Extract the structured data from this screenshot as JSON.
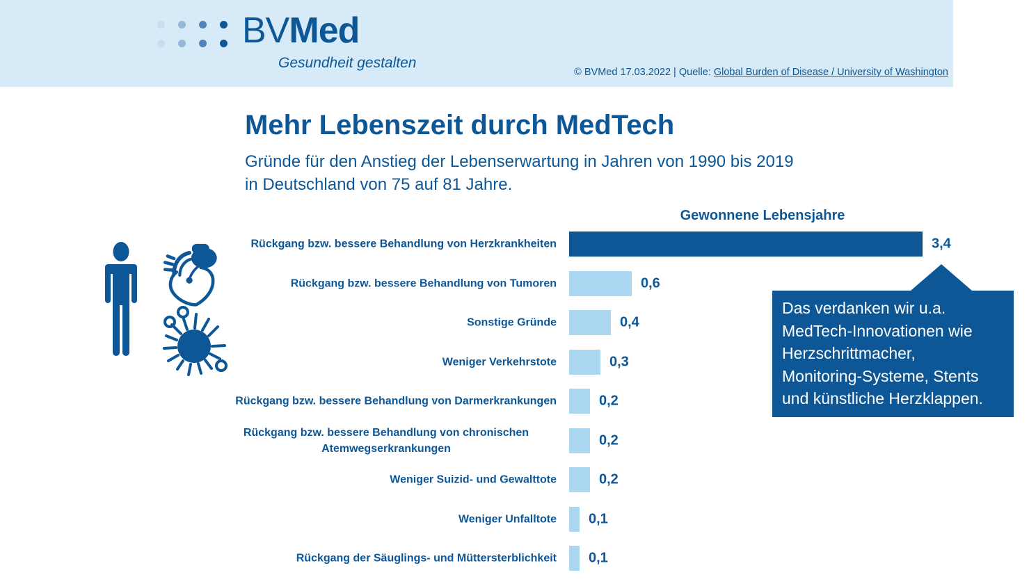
{
  "colors": {
    "header_bg": "#D7EAF7",
    "brand_blue": "#0D5796",
    "bar_light_blue": "#ABD8F0",
    "callout_bg": "#0D5796",
    "callout_text": "#FFFFFF"
  },
  "header": {
    "logo_bv": "BV",
    "logo_med": "Med",
    "logo_dot_colors": [
      "#CADDED",
      "#94B8D8",
      "#4F83BA",
      "#0D5796"
    ],
    "tagline": "Gesundheit gestalten",
    "credit_prefix": "© BVMed 17.03.2022 | Quelle: ",
    "credit_link": "Global Burden of Disease / University of Washington"
  },
  "main": {
    "title": "Mehr Lebenszeit durch MedTech",
    "subtitle_line1": "Gründe für den Anstieg der Lebenserwartung in Jahren von 1990 bis 2019",
    "subtitle_line2": "in Deutschland von 75 auf 81 Jahre."
  },
  "chart_data": {
    "type": "bar",
    "orientation": "horizontal",
    "title": "Gewonnene Lebensjahre",
    "categories": [
      "Rückgang bzw. bessere Behandlung von Herzkrankheiten",
      "Rückgang bzw. bessere Behandlung von Tumoren",
      "Sonstige Gründe",
      "Weniger Verkehrstote",
      "Rückgang bzw. bessere Behandlung von Darmerkrankungen",
      "Rückgang bzw. bessere Behandlung von chronischen Atemwegserkrankungen",
      "Weniger Suizid- und Gewalttote",
      "Weniger Unfalltote",
      "Rückgang der Säuglings- und Müttersterblichkeit"
    ],
    "values": [
      3.4,
      0.6,
      0.4,
      0.3,
      0.2,
      0.2,
      0.2,
      0.1,
      0.1
    ],
    "value_labels": [
      "3,4",
      "0,6",
      "0,4",
      "0,3",
      "0,2",
      "0,2",
      "0,2",
      "0,1",
      "0,1"
    ],
    "xlim": [
      0,
      3.4
    ],
    "grid": false,
    "legend": false,
    "highlight_index": 0,
    "highlight_color": "#0D5796",
    "bar_color": "#ABD8F0"
  },
  "callout": {
    "lines": [
      "Das verdanken wir u.a.",
      "MedTech-Innovationen wie",
      "Herzschrittmacher,",
      "Monitoring-Systeme, Stents",
      "und künstliche Herzklappen."
    ]
  },
  "icons": {
    "person": "person-icon",
    "heart_pacemaker": "heart-pacemaker-icon",
    "virus_cell": "virus-cell-icon"
  }
}
